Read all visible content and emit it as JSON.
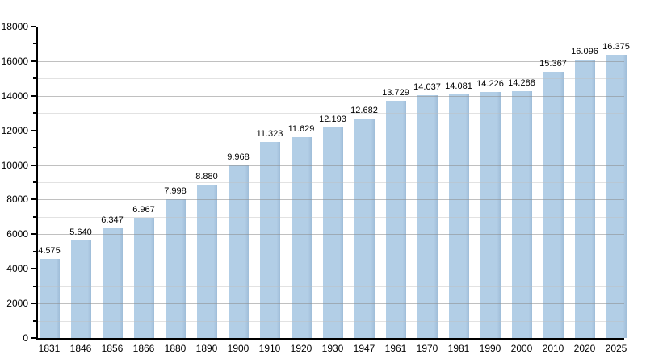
{
  "chart_data": {
    "type": "bar",
    "title": "",
    "xlabel": "",
    "ylabel": "",
    "categories": [
      "1831",
      "1846",
      "1856",
      "1866",
      "1880",
      "1890",
      "1900",
      "1910",
      "1920",
      "1930",
      "1947",
      "1961",
      "1970",
      "1981",
      "1990",
      "2000",
      "2010",
      "2020",
      "2025"
    ],
    "values": [
      4575,
      5640,
      6347,
      6967,
      7998,
      8880,
      9968,
      11323,
      11629,
      12193,
      12682,
      13729,
      14037,
      14081,
      14226,
      14288,
      15367,
      16096,
      16375
    ],
    "value_labels": [
      "4.575",
      "5.640",
      "6.347",
      "6.967",
      "7.998",
      "8.880",
      "9.968",
      "11.323",
      "11.629",
      "12.193",
      "12.682",
      "13.729",
      "14.037",
      "14.081",
      "14.226",
      "14.288",
      "15.367",
      "16.096",
      "16.375"
    ],
    "ylim": [
      0,
      18000
    ],
    "y_major_step": 2000,
    "y_minor_step": 1000,
    "y_major_tick_labels": [
      "0",
      "2000",
      "4000",
      "6000",
      "8000",
      "10000",
      "12000",
      "14000",
      "16000",
      "18000"
    ],
    "grid": true,
    "legend": "none",
    "colors": {
      "bar_fill": "#b2cee6",
      "bar_edge": "#9fbdd8",
      "major_grid": "rgba(140,140,140,0.55)",
      "minor_grid": "rgba(190,190,190,0.45)",
      "axis": "#000000",
      "text": "#000000",
      "background": "#ffffff"
    }
  }
}
